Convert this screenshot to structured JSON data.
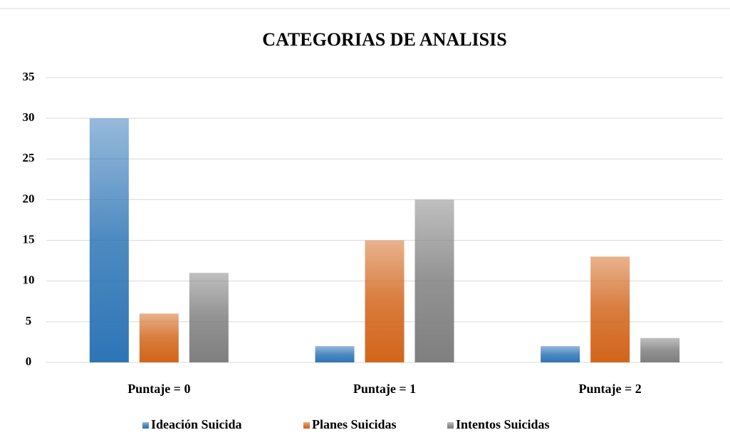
{
  "chart_data": {
    "type": "bar",
    "title": "CATEGORIAS DE ANALISIS",
    "categories": [
      "Puntaje = 0",
      "Puntaje = 1",
      "Puntaje = 2"
    ],
    "series": [
      {
        "name": "Ideación Suicida",
        "color": "#2e75b6",
        "values": [
          30,
          2,
          2
        ]
      },
      {
        "name": "Planes Suicidas",
        "color": "#d2651b",
        "values": [
          6,
          15,
          13
        ]
      },
      {
        "name": "Intentos Suicidas",
        "color": "#7f7f7f",
        "values": [
          11,
          20,
          3
        ]
      }
    ],
    "ylim": [
      0,
      35
    ],
    "yticks": [
      0,
      5,
      10,
      15,
      20,
      25,
      30,
      35
    ],
    "grid": true,
    "legend": "bottom"
  }
}
